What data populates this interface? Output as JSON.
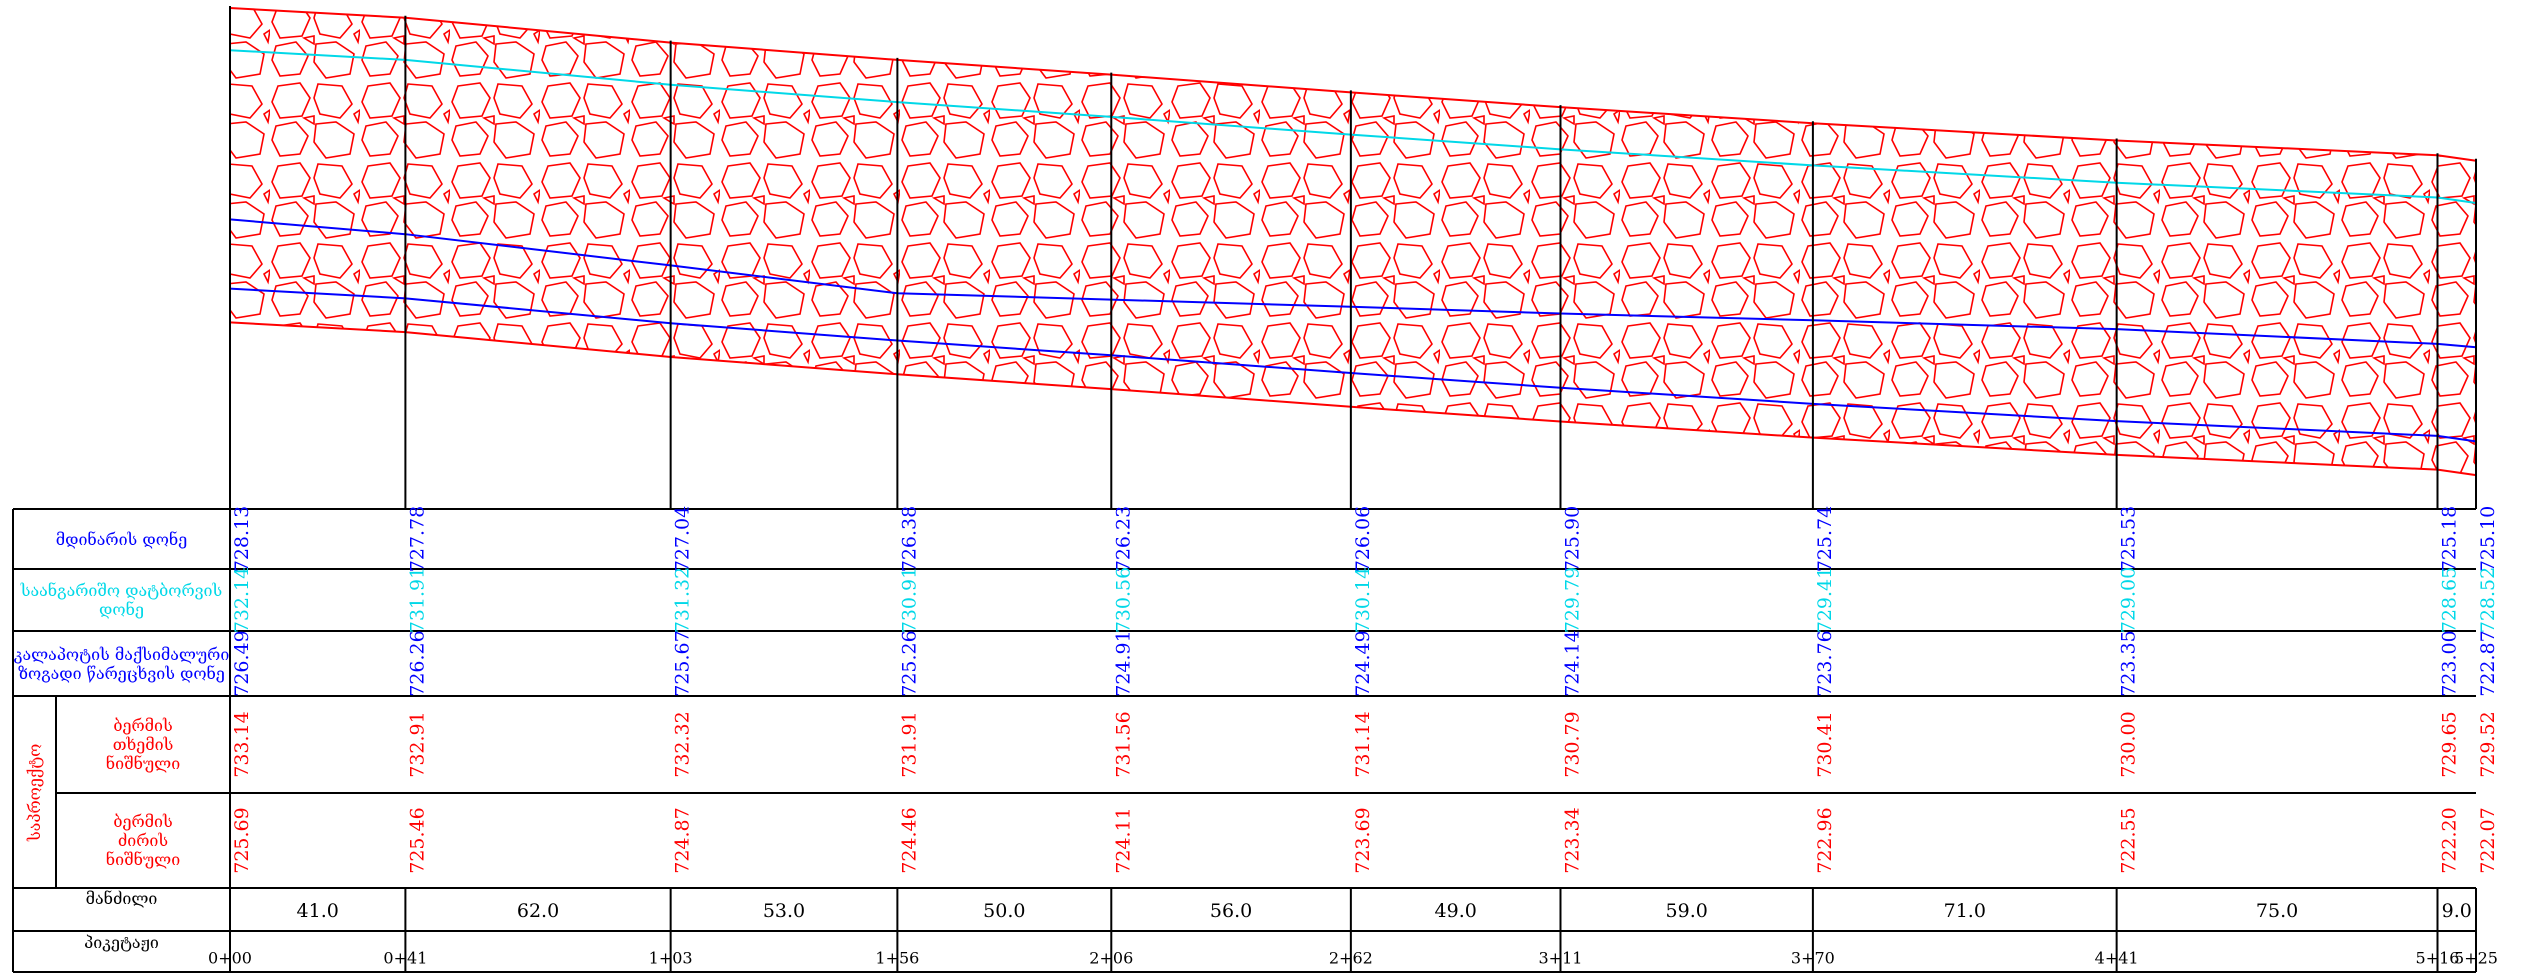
{
  "levels": [
    {
      "label": "მდინარის დონე",
      "color": "#0000ff",
      "values": [
        "728.13",
        "727.78",
        "727.04",
        "726.38",
        "726.23",
        "726.06",
        "725.90",
        "725.74",
        "725.53",
        "725.18",
        "725.10"
      ]
    },
    {
      "label": "საანგარიშო დატბორვის დონე",
      "color": "#00d8e8",
      "values": [
        "732.14",
        "731.91",
        "731.32",
        "730.91",
        "730.56",
        "730.14",
        "729.79",
        "729.41",
        "729.00",
        "728.65",
        "728.52"
      ]
    },
    {
      "label": "კალაპოტის მაქსიმალური ზოგადი წარეცხვის დონე",
      "color": "#0000ff",
      "values": [
        "726.49",
        "726.26",
        "725.67",
        "725.26",
        "724.91",
        "724.49",
        "724.14",
        "723.76",
        "723.35",
        "723.00",
        "722.87"
      ]
    }
  ],
  "design": {
    "label": "საპროექტო",
    "color": "#ff0000",
    "rows": [
      {
        "label": "ბერმის თხემის ნიშნული",
        "values": [
          "733.14",
          "732.91",
          "732.32",
          "731.91",
          "731.56",
          "731.14",
          "730.79",
          "730.41",
          "730.00",
          "729.65",
          "729.52"
        ]
      },
      {
        "label": "ბერმის ძირის ნიშნული",
        "values": [
          "725.69",
          "725.46",
          "724.87",
          "724.46",
          "724.11",
          "723.69",
          "723.34",
          "722.96",
          "722.55",
          "722.20",
          "722.07"
        ]
      }
    ]
  },
  "distance": {
    "label": "მანძილი",
    "values": [
      "41.0",
      "62.0",
      "53.0",
      "50.0",
      "56.0",
      "49.0",
      "59.0",
      "71.0",
      "75.0",
      "9.0"
    ]
  },
  "picket": {
    "label": "პიკეტაჟი",
    "values": [
      "0+00",
      "0+41",
      "1+03",
      "1+56",
      "2+06",
      "2+62",
      "3+11",
      "3+70",
      "4+41",
      "5+16",
      "5+25"
    ]
  }
}
